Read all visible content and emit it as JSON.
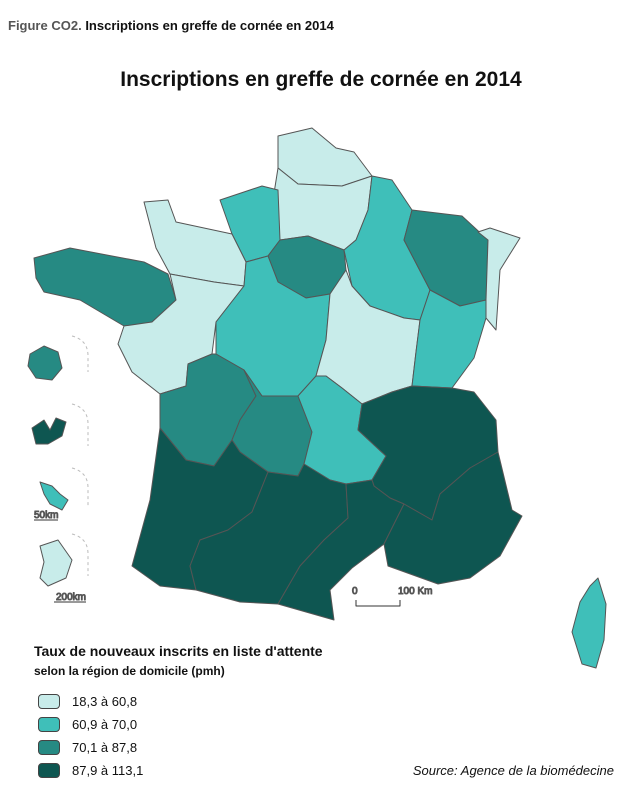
{
  "figure": {
    "label": "Figure CO2.",
    "caption": "Inscriptions en greffe de cornée en 2014"
  },
  "map": {
    "title": "Inscriptions en greffe de cornée en 2014",
    "scale_bar": {
      "start": "0",
      "end": "100 Km"
    },
    "inset_scales": {
      "reunion_guadeloupe_martinique": "50km",
      "guyane": "200km"
    }
  },
  "legend": {
    "title": "Taux de nouveaux inscrits en liste d'attente",
    "subtitle": "selon la région de domicile (pmh)",
    "classes": [
      {
        "label": "18,3 à 60,8",
        "color": "#c8ecea"
      },
      {
        "label": "60,9 à 70,0",
        "color": "#3fbfb9"
      },
      {
        "label": "70,1 à 87,8",
        "color": "#268a83"
      },
      {
        "label": "87,9 à 113,1",
        "color": "#0e5651"
      }
    ]
  },
  "source": "Source: Agence de la biomédecine"
}
